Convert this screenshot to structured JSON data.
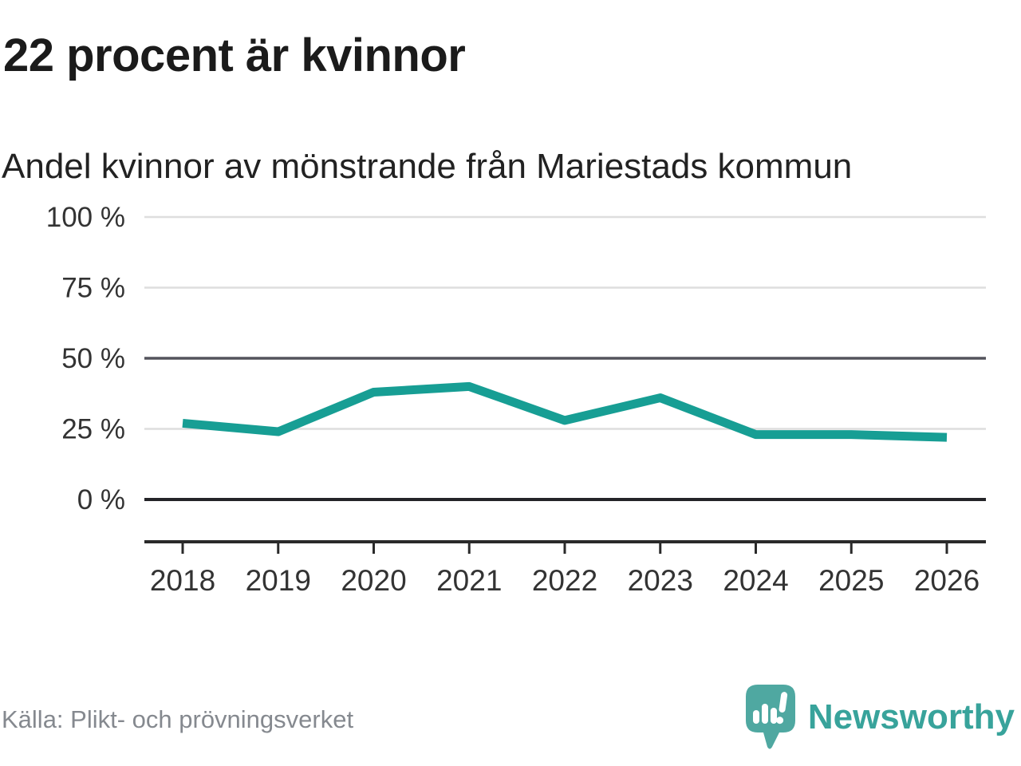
{
  "header": {
    "title": "22 procent är kvinnor",
    "subtitle": "Andel kvinnor av mönstrande från Mariestads kommun"
  },
  "chart_data": {
    "type": "line",
    "title": "22 procent är kvinnor",
    "subtitle": "Andel kvinnor av mönstrande från Mariestads kommun",
    "categories": [
      "2018",
      "2019",
      "2020",
      "2021",
      "2022",
      "2023",
      "2024",
      "2025",
      "2026"
    ],
    "series": [
      {
        "name": "Andel kvinnor av mönstrande",
        "values": [
          27,
          24,
          38,
          40,
          28,
          36,
          23,
          23,
          22
        ]
      }
    ],
    "unit": "%",
    "ylim": [
      0,
      100
    ],
    "y_ticks": [
      0,
      25,
      50,
      75,
      100
    ],
    "y_tick_suffix": " %",
    "grid": true,
    "legend": "none",
    "colors": {
      "line": "#179e94",
      "grid_light": "#dedede",
      "grid_emphasis": "#54545c",
      "zero_line": "#242428",
      "axis_line": "#2a2a2a",
      "tick_label": "#333333"
    },
    "emphasized_gridlines": [
      50
    ]
  },
  "footer": {
    "source": "Källa: Plikt- och prövningsverket",
    "brand": "Newsworthy",
    "brand_text_color": "#38a39b",
    "brand_icon_color": "#4fa8a1"
  }
}
